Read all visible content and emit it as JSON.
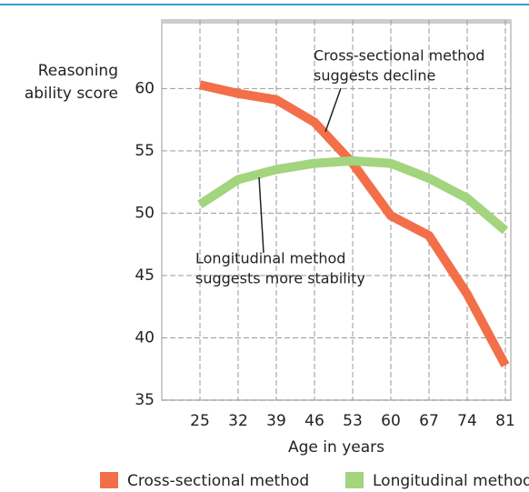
{
  "chart_data": {
    "type": "line",
    "y_label": [
      "Reasoning",
      "ability score"
    ],
    "x_label": "Age in years",
    "x": [
      25,
      32,
      39,
      46,
      53,
      60,
      67,
      74,
      81
    ],
    "series": [
      {
        "name": "Cross-sectional method",
        "color": "#f26f4a",
        "values": [
          60.3,
          59.6,
          59.1,
          57.3,
          54,
          49.8,
          48.2,
          43.5,
          37.8
        ]
      },
      {
        "name": "Longitudinal method",
        "color": "#a3d47e",
        "values": [
          50.7,
          52.7,
          53.5,
          54,
          54.2,
          54,
          52.8,
          51.2,
          48.6
        ]
      }
    ],
    "xlim": [
      18,
      82
    ],
    "xticks": [
      25,
      32,
      39,
      46,
      53,
      60,
      67,
      74,
      81
    ],
    "ylim": [
      35,
      65.5
    ],
    "yticks": [
      35,
      40,
      45,
      50,
      55,
      60
    ],
    "grid": true,
    "annotations": [
      {
        "lines": [
          "Cross-sectional method",
          "suggests decline"
        ]
      },
      {
        "lines": [
          "Longitudinal method",
          "suggests more stability"
        ]
      }
    ]
  }
}
